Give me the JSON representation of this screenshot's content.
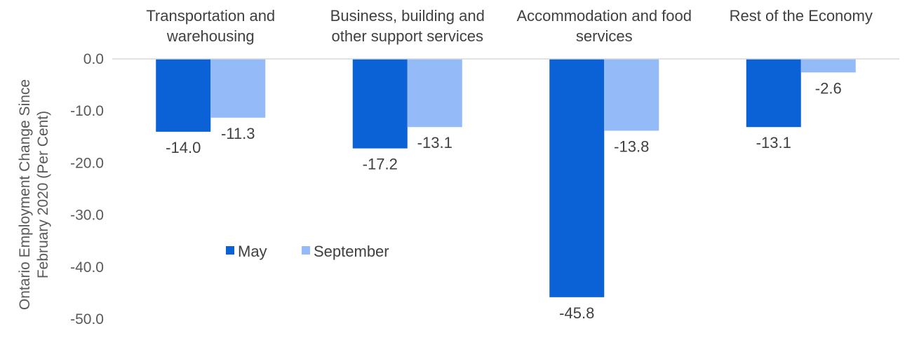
{
  "chart_data": {
    "type": "bar",
    "title": "",
    "xlabel": "",
    "ylabel": [
      "Ontario Employment Change Since",
      "February 2020 (Per Cent)"
    ],
    "ylim": [
      -50,
      0
    ],
    "yticks": [
      0,
      -10,
      -20,
      -30,
      -40,
      -50
    ],
    "ytick_labels": [
      "0.0",
      "-10.0",
      "-20.0",
      "-30.0",
      "-40.0",
      "-50.0"
    ],
    "categories": [
      [
        "Transportation and",
        "warehousing"
      ],
      [
        "Business, building and",
        "other support services"
      ],
      [
        "Accommodation and food",
        "services"
      ],
      [
        "Rest of the Economy"
      ]
    ],
    "series": [
      {
        "name": "May",
        "color": "#0b61d6",
        "values": [
          -14.0,
          -17.2,
          -45.8,
          -13.1
        ],
        "labels": [
          "-14.0",
          "-17.2",
          "-45.8",
          "-13.1"
        ]
      },
      {
        "name": "September",
        "color": "#94bbf8",
        "values": [
          -11.3,
          -13.1,
          -13.8,
          -2.6
        ],
        "labels": [
          "-11.3",
          "-13.1",
          "-13.8",
          "-2.6"
        ]
      }
    ],
    "legend_position": "lower-left-inside",
    "grid": false,
    "category_label_position": "top"
  }
}
